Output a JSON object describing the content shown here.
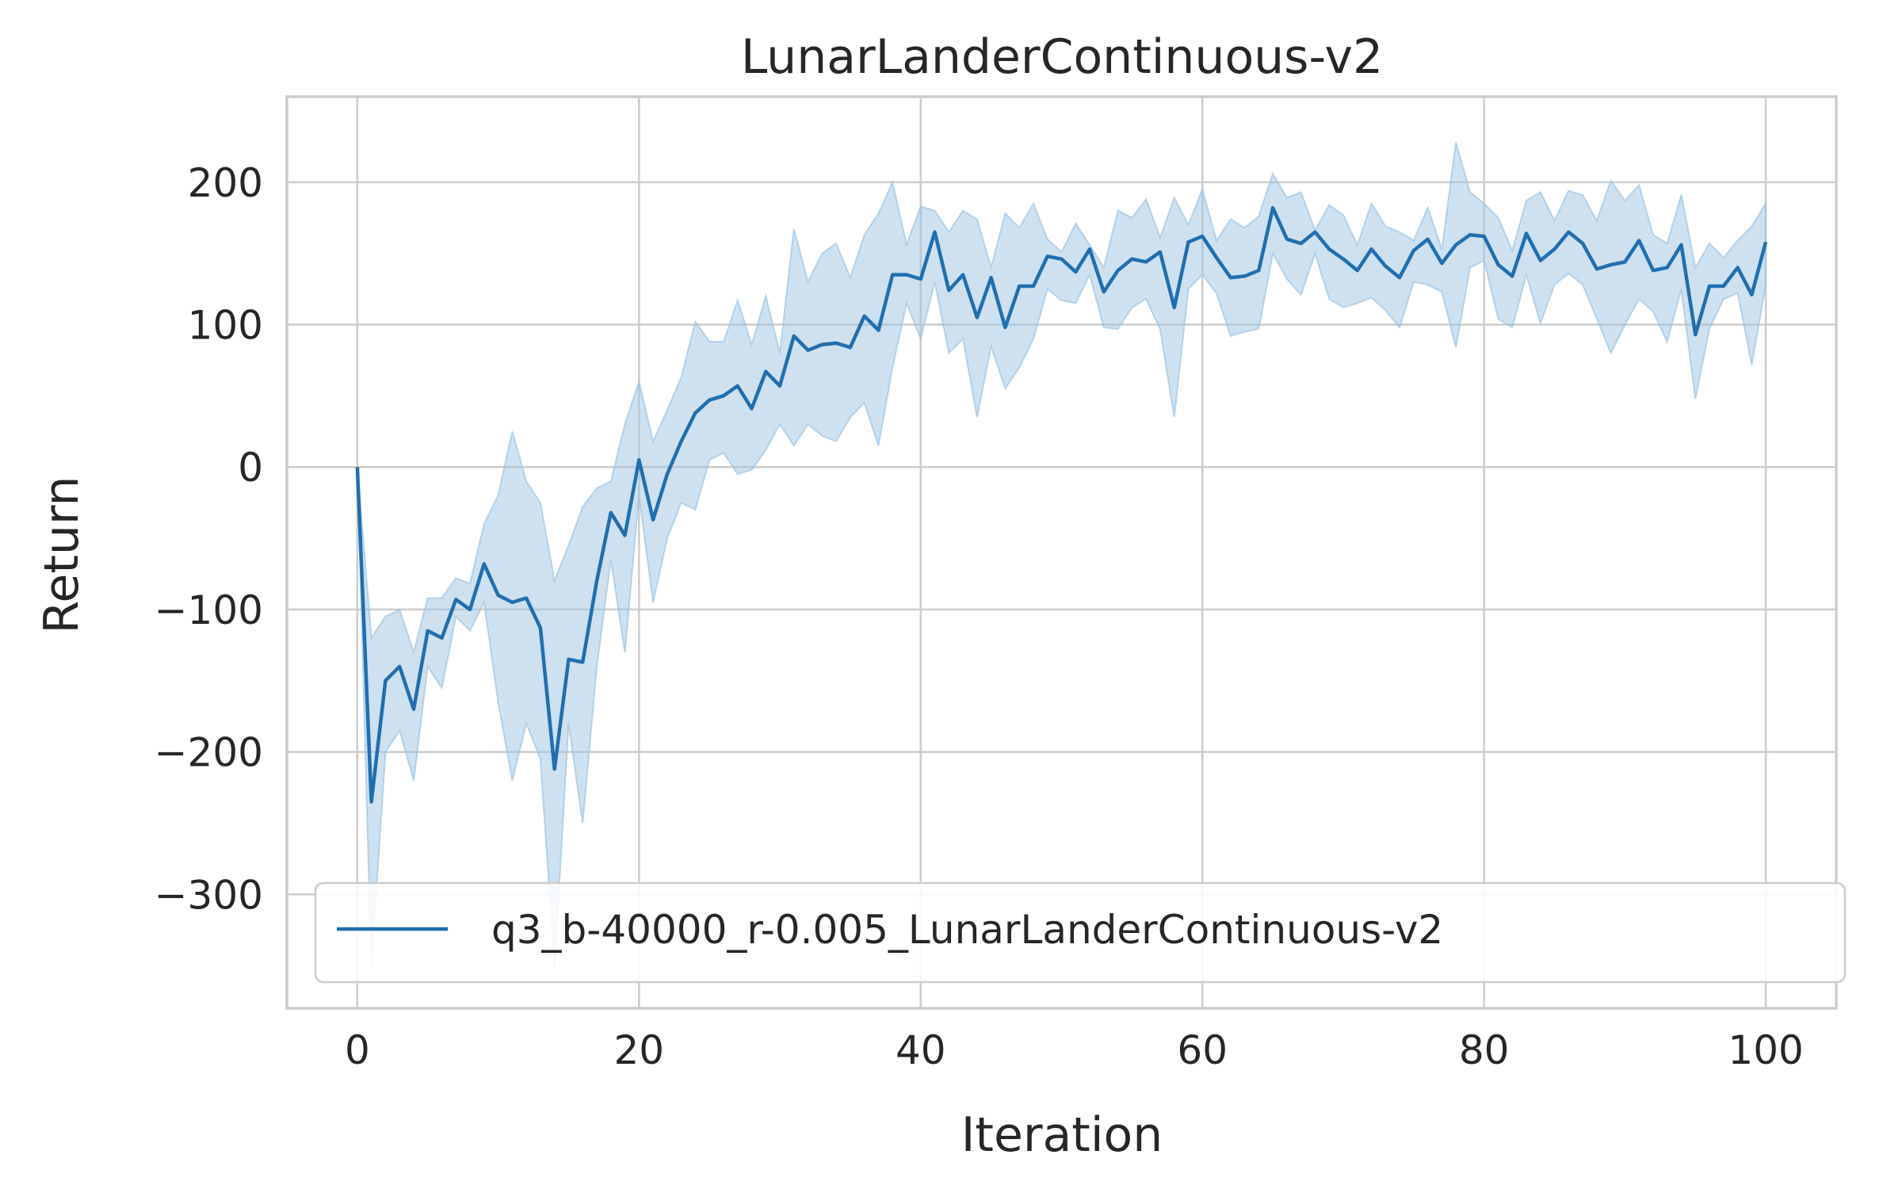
{
  "chart_data": {
    "type": "line",
    "title": "LunarLanderContinuous-v2",
    "xlabel": "Iteration",
    "ylabel": "Return",
    "xlim": [
      -5,
      105
    ],
    "ylim": [
      -380,
      260
    ],
    "xticks": [
      0,
      20,
      40,
      60,
      80,
      100
    ],
    "yticks": [
      -300,
      -200,
      -100,
      0,
      100,
      200
    ],
    "ytick_labels": [
      "−300",
      "−200",
      "−100",
      "0",
      "100",
      "200"
    ],
    "grid": true,
    "legend_position": "lower-right",
    "colors": {
      "line": "#1f6fb0",
      "band": "#9ec4e2"
    },
    "series": [
      {
        "name": "q3_b-40000_r-0.005_LunarLanderContinuous-v2",
        "x": [
          0,
          1,
          2,
          3,
          4,
          5,
          6,
          7,
          8,
          9,
          10,
          11,
          12,
          13,
          14,
          15,
          16,
          17,
          18,
          19,
          20,
          21,
          22,
          23,
          24,
          25,
          26,
          27,
          28,
          29,
          30,
          31,
          32,
          33,
          34,
          35,
          36,
          37,
          38,
          39,
          40,
          41,
          42,
          43,
          44,
          45,
          46,
          47,
          48,
          49,
          50,
          51,
          52,
          53,
          54,
          55,
          56,
          57,
          58,
          59,
          60,
          61,
          62,
          63,
          64,
          65,
          66,
          67,
          68,
          69,
          70,
          71,
          72,
          73,
          74,
          75,
          76,
          77,
          78,
          79,
          80,
          81,
          82,
          83,
          84,
          85,
          86,
          87,
          88,
          89,
          90,
          91,
          92,
          93,
          94,
          95,
          96,
          97,
          98,
          99,
          100
        ],
        "mean": [
          0,
          -235,
          -150,
          -140,
          -170,
          -115,
          -120,
          -93,
          -100,
          -68,
          -90,
          -95,
          -92,
          -113,
          -212,
          -135,
          -137,
          -80,
          -32,
          -48,
          5,
          -37,
          -5,
          18,
          38,
          47,
          50,
          57,
          41,
          67,
          57,
          92,
          82,
          86,
          87,
          84,
          106,
          96,
          135,
          135,
          132,
          165,
          124,
          135,
          105,
          133,
          98,
          127,
          127,
          148,
          146,
          137,
          153,
          123,
          138,
          146,
          144,
          151,
          112,
          158,
          162,
          147,
          133,
          134,
          138,
          182,
          160,
          157,
          165,
          153,
          146,
          138,
          153,
          141,
          133,
          152,
          160,
          143,
          156,
          163,
          162,
          142,
          134,
          164,
          145,
          153,
          165,
          157,
          139,
          142,
          144,
          159,
          138,
          140,
          156,
          93,
          127,
          127,
          140,
          121,
          158
        ],
        "lower": [
          0,
          -350,
          -200,
          -185,
          -220,
          -140,
          -155,
          -105,
          -115,
          -95,
          -165,
          -220,
          -180,
          -205,
          -350,
          -180,
          -250,
          -140,
          -65,
          -130,
          -20,
          -95,
          -50,
          -25,
          -30,
          5,
          10,
          -5,
          -2,
          12,
          30,
          15,
          30,
          22,
          18,
          35,
          45,
          15,
          70,
          115,
          90,
          130,
          80,
          90,
          35,
          85,
          55,
          70,
          90,
          125,
          117,
          115,
          135,
          98,
          97,
          112,
          118,
          97,
          35,
          125,
          135,
          122,
          92,
          95,
          97,
          150,
          132,
          121,
          150,
          118,
          112,
          115,
          119,
          110,
          98,
          130,
          128,
          123,
          84,
          140,
          145,
          104,
          98,
          135,
          101,
          128,
          136,
          128,
          104,
          80,
          100,
          118,
          109,
          88,
          125,
          48,
          97,
          118,
          122,
          72,
          128
        ],
        "upper": [
          0,
          -120,
          -105,
          -100,
          -130,
          -92,
          -92,
          -78,
          -82,
          -40,
          -20,
          25,
          -10,
          -25,
          -80,
          -55,
          -28,
          -15,
          -10,
          30,
          60,
          18,
          40,
          63,
          102,
          88,
          88,
          117,
          86,
          120,
          80,
          167,
          130,
          150,
          157,
          133,
          163,
          178,
          200,
          156,
          183,
          180,
          165,
          180,
          174,
          140,
          178,
          168,
          185,
          160,
          151,
          171,
          156,
          140,
          180,
          175,
          188,
          161,
          189,
          170,
          195,
          159,
          174,
          168,
          176,
          206,
          189,
          193,
          166,
          184,
          177,
          156,
          185,
          169,
          165,
          159,
          182,
          153,
          228,
          193,
          185,
          175,
          152,
          187,
          193,
          173,
          194,
          191,
          173,
          201,
          187,
          198,
          163,
          157,
          191,
          140,
          157,
          147,
          159,
          169,
          185
        ]
      }
    ]
  }
}
